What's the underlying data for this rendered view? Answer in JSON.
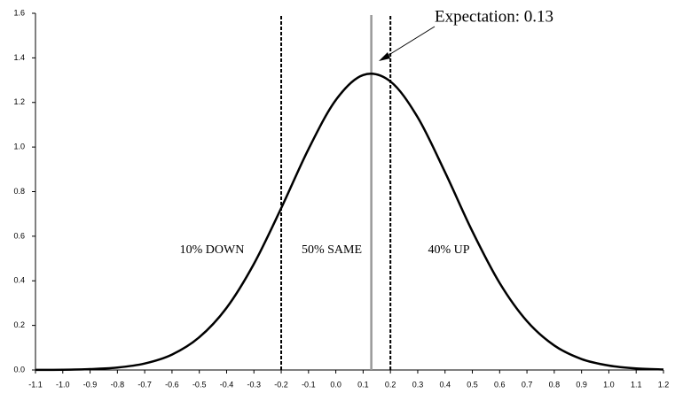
{
  "chart_data": {
    "type": "line",
    "x": [
      -1.1,
      -1.0,
      -0.9,
      -0.8,
      -0.7,
      -0.6,
      -0.5,
      -0.4,
      -0.3,
      -0.2,
      -0.1,
      0.0,
      0.1,
      0.2,
      0.3,
      0.4,
      0.5,
      0.6,
      0.7,
      0.8,
      0.9,
      1.0,
      1.1,
      1.2
    ],
    "series": [
      {
        "color": "#000000",
        "values": [
          0.0003,
          0.001,
          0.004,
          0.011,
          0.029,
          0.069,
          0.147,
          0.279,
          0.476,
          0.726,
          0.991,
          1.211,
          1.323,
          1.294,
          1.133,
          0.887,
          0.622,
          0.39,
          0.219,
          0.11,
          0.049,
          0.02,
          0.007,
          0.002
        ]
      }
    ],
    "xlim": [
      -1.1,
      1.2
    ],
    "xticks": [
      -1.1,
      {
        "value": -1.0,
        "label": "-1.0"
      },
      -0.9,
      -0.8,
      -0.7,
      -0.6,
      -0.5,
      -0.4,
      -0.3,
      -0.2,
      -0.1,
      {
        "value": 0.0,
        "label": "0.0"
      },
      0.1,
      0.2,
      0.3,
      0.4,
      0.5,
      0.6,
      0.7,
      0.8,
      0.9,
      {
        "value": 1.0,
        "label": "1.0"
      },
      1.1,
      1.2
    ],
    "ylim": [
      0,
      1.6
    ],
    "yticks": [
      {
        "value": 0.0,
        "label": "0.0"
      },
      0.2,
      0.4,
      0.6,
      0.8,
      {
        "value": 1.0,
        "label": "1.0"
      },
      1.2,
      1.4,
      1.6
    ],
    "grid": false,
    "vlines": [
      {
        "x": -0.2,
        "color": "#000000",
        "style": "dashed"
      },
      {
        "x": 0.13,
        "color": "#999999",
        "style": "solid"
      },
      {
        "x": 0.2,
        "color": "#000000",
        "style": "dashed"
      }
    ],
    "annotations": [
      "Expectation: 0.13",
      "10% DOWN",
      "50% SAME",
      "40% UP"
    ]
  }
}
